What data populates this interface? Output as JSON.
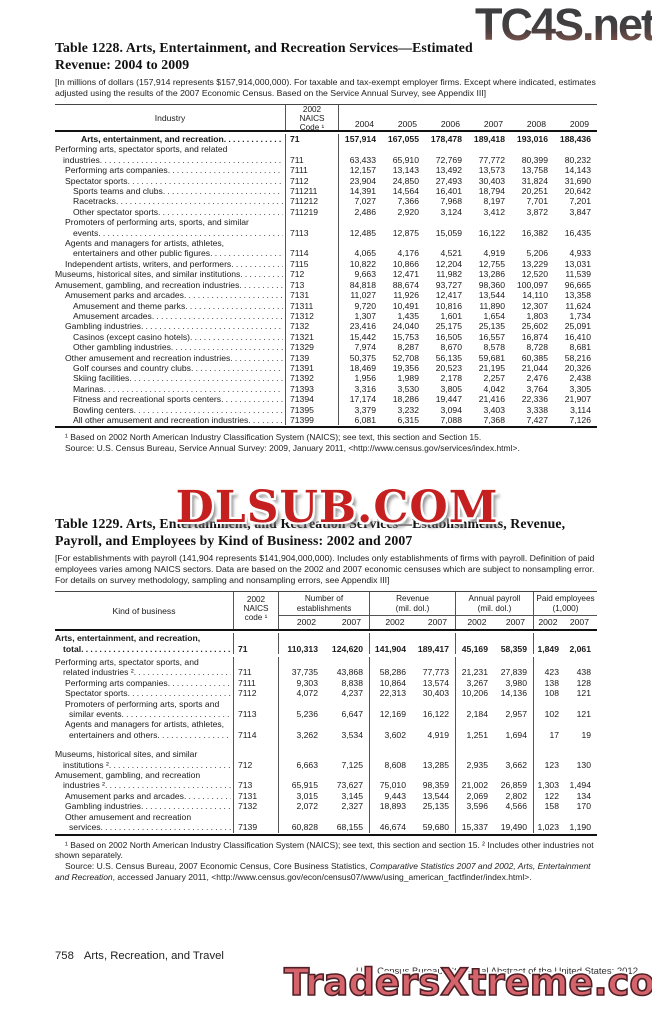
{
  "watermarks": {
    "top": "TC4S.net",
    "middle": "DLSUB.COM",
    "bottom": "TradersXtreme.com"
  },
  "table1228": {
    "title_line1": "Table 1228. Arts, Entertainment, and Recreation Services—Estimated",
    "title_line2": "Revenue: 2004 to 2009",
    "note": "[In millions of dollars (157,914 represents $157,914,000,000). For taxable and tax-exempt employer firms. Except where indicated, estimates adjusted using the results of the 2007 Economic Census. Based on the Service Annual Survey, see Appendix III]",
    "header": {
      "industry": "Industry",
      "naics": [
        "2002",
        "NAICS",
        "Code ¹"
      ],
      "years": [
        "2004",
        "2005",
        "2006",
        "2007",
        "2008",
        "2009"
      ]
    },
    "rows": [
      {
        "t": "Arts, entertainment, and recreation",
        "i": 26,
        "dots": true,
        "bold": true,
        "code": "71",
        "v": [
          "157,914",
          "167,055",
          "178,478",
          "189,418",
          "193,016",
          "188,436"
        ]
      },
      {
        "t": "Performing arts, spectator sports, and related",
        "i": 0
      },
      {
        "t": "industries",
        "i": 8,
        "dots": true,
        "code": "711",
        "v": [
          "63,433",
          "65,910",
          "72,769",
          "77,772",
          "80,399",
          "80,232"
        ]
      },
      {
        "t": "Performing arts companies",
        "i": 10,
        "dots": true,
        "code": "7111",
        "v": [
          "12,157",
          "13,143",
          "13,492",
          "13,573",
          "13,758",
          "14,143"
        ]
      },
      {
        "t": "Spectator sports",
        "i": 10,
        "dots": true,
        "code": "7112",
        "v": [
          "23,904",
          "24,850",
          "27,493",
          "30,403",
          "31,824",
          "31,690"
        ]
      },
      {
        "t": "Sports teams and clubs",
        "i": 18,
        "dots": true,
        "code": "711211",
        "v": [
          "14,391",
          "14,564",
          "16,401",
          "18,794",
          "20,251",
          "20,642"
        ]
      },
      {
        "t": "Racetracks",
        "i": 18,
        "dots": true,
        "code": "711212",
        "v": [
          "7,027",
          "7,366",
          "7,968",
          "8,197",
          "7,701",
          "7,201"
        ]
      },
      {
        "t": "Other spectator sports",
        "i": 18,
        "dots": true,
        "code": "711219",
        "v": [
          "2,486",
          "2,920",
          "3,124",
          "3,412",
          "3,872",
          "3,847"
        ]
      },
      {
        "t": "Promoters of performing arts, sports, and similar",
        "i": 10
      },
      {
        "t": "events",
        "i": 18,
        "dots": true,
        "code": "7113",
        "v": [
          "12,485",
          "12,875",
          "15,059",
          "16,122",
          "16,382",
          "16,435"
        ]
      },
      {
        "t": "Agents and managers for artists, athletes,",
        "i": 10
      },
      {
        "t": "entertainers and other public figures",
        "i": 18,
        "dots": true,
        "code": "7114",
        "v": [
          "4,065",
          "4,176",
          "4,521",
          "4,919",
          "5,206",
          "4,933"
        ]
      },
      {
        "t": "Independent artists, writers, and performers",
        "i": 10,
        "dots": true,
        "code": "7115",
        "v": [
          "10,822",
          "10,866",
          "12,204",
          "12,755",
          "13,229",
          "13,031"
        ]
      },
      {
        "t": "Museums, historical sites, and similar institutions",
        "i": 0,
        "dots": true,
        "code": "712",
        "v": [
          "9,663",
          "12,471",
          "11,982",
          "13,286",
          "12,520",
          "11,539"
        ]
      },
      {
        "t": "Amusement, gambling, and recreation industries",
        "i": 0,
        "dots": true,
        "code": "713",
        "v": [
          "84,818",
          "88,674",
          "93,727",
          "98,360",
          "100,097",
          "96,665"
        ]
      },
      {
        "t": "Amusement parks and arcades",
        "i": 10,
        "dots": true,
        "code": "7131",
        "v": [
          "11,027",
          "11,926",
          "12,417",
          "13,544",
          "14,110",
          "13,358"
        ]
      },
      {
        "t": "Amusement and theme parks",
        "i": 18,
        "dots": true,
        "code": "71311",
        "v": [
          "9,720",
          "10,491",
          "10,816",
          "11,890",
          "12,307",
          "11,624"
        ]
      },
      {
        "t": "Amusement arcades",
        "i": 18,
        "dots": true,
        "code": "71312",
        "v": [
          "1,307",
          "1,435",
          "1,601",
          "1,654",
          "1,803",
          "1,734"
        ]
      },
      {
        "t": "Gambling industries",
        "i": 10,
        "dots": true,
        "code": "7132",
        "v": [
          "23,416",
          "24,040",
          "25,175",
          "25,135",
          "25,602",
          "25,091"
        ]
      },
      {
        "t": "Casinos (except casino hotels)",
        "i": 18,
        "dots": true,
        "code": "71321",
        "v": [
          "15,442",
          "15,753",
          "16,505",
          "16,557",
          "16,874",
          "16,410"
        ]
      },
      {
        "t": "Other gambling industries",
        "i": 18,
        "dots": true,
        "code": "71329",
        "v": [
          "7,974",
          "8,287",
          "8,670",
          "8,578",
          "8,728",
          "8,681"
        ]
      },
      {
        "t": "Other amusement and recreation industries",
        "i": 10,
        "dots": true,
        "code": "7139",
        "v": [
          "50,375",
          "52,708",
          "56,135",
          "59,681",
          "60,385",
          "58,216"
        ]
      },
      {
        "t": "Golf courses and country clubs",
        "i": 18,
        "dots": true,
        "code": "71391",
        "v": [
          "18,469",
          "19,356",
          "20,523",
          "21,195",
          "21,044",
          "20,326"
        ]
      },
      {
        "t": "Skiing facilities",
        "i": 18,
        "dots": true,
        "code": "71392",
        "v": [
          "1,956",
          "1,989",
          "2,178",
          "2,257",
          "2,476",
          "2,438"
        ]
      },
      {
        "t": "Marinas",
        "i": 18,
        "dots": true,
        "code": "71393",
        "v": [
          "3,316",
          "3,530",
          "3,805",
          "4,042",
          "3,764",
          "3,305"
        ]
      },
      {
        "t": "Fitness and recreational sports centers",
        "i": 18,
        "dots": true,
        "code": "71394",
        "v": [
          "17,174",
          "18,286",
          "19,447",
          "21,416",
          "22,336",
          "21,907"
        ]
      },
      {
        "t": "Bowling centers",
        "i": 18,
        "dots": true,
        "code": "71395",
        "v": [
          "3,379",
          "3,232",
          "3,094",
          "3,403",
          "3,338",
          "3,114"
        ]
      },
      {
        "t": "All other amusement and recreation industries",
        "i": 18,
        "dots": true,
        "code": "71399",
        "v": [
          "6,081",
          "6,315",
          "7,088",
          "7,368",
          "7,427",
          "7,126"
        ]
      }
    ],
    "footnote": "¹ Based on 2002 North American Industry Classification System (NAICS); see text, this section and Section 15.",
    "source": "Source: U.S. Census Bureau, Service Annual Survey: 2009, January 2011, <http://www.census.gov/services/index.html>."
  },
  "table1229": {
    "title_line1": "Table 1229. Arts, Entertainment, and Recreation Services—Establishments, Revenue,",
    "title_line2": "Payroll, and Employees by Kind of Business: 2002 and 2007",
    "note": "[For establishments with payroll (141,904 represents $141,904,000,000). Includes only establishments of firms with payroll. Definition of paid employees varies among NAICS sectors. Data are based on the 2002 and 2007 economic censuses which are subject to nonsampling error. For details on survey methodology, sampling and nonsampling errors, see Appendix III]",
    "header": {
      "kind": "Kind of business",
      "naics": [
        "2002",
        "NAICS",
        "code ¹"
      ],
      "groups": [
        {
          "l1": "Number of",
          "l2": "establishments",
          "years": [
            "2002",
            "2007"
          ]
        },
        {
          "l1": "Revenue",
          "l2": "(mil. dol.)",
          "years": [
            "2002",
            "2007"
          ]
        },
        {
          "l1": "Annual payroll",
          "l2": "(mil. dol.)",
          "years": [
            "2002",
            "2007"
          ]
        },
        {
          "l1": "Paid employees",
          "l2": "(1,000)",
          "years": [
            "2002",
            "2007"
          ]
        }
      ]
    },
    "rows": [
      {
        "t": "Arts, entertainment, and recreation,",
        "i": 0,
        "bold": true
      },
      {
        "t": "total",
        "i": 8,
        "dots": true,
        "bold": true,
        "gap": true,
        "code": "71",
        "v": [
          "110,313",
          "124,620",
          "141,904",
          "189,417",
          "45,169",
          "58,359",
          "1,849",
          "2,061"
        ]
      },
      {
        "t": "Performing arts, spectator sports, and",
        "i": 0
      },
      {
        "t": "related industries ²",
        "i": 8,
        "dots": true,
        "code": "711",
        "v": [
          "37,735",
          "43,868",
          "58,286",
          "77,773",
          "21,231",
          "27,839",
          "423",
          "438"
        ]
      },
      {
        "t": "Performing arts companies",
        "i": 10,
        "dots": true,
        "code": "7111",
        "v": [
          "9,303",
          "8,838",
          "10,864",
          "13,574",
          "3,267",
          "3,980",
          "138",
          "128"
        ]
      },
      {
        "t": "Spectator sports",
        "i": 10,
        "dots": true,
        "code": "7112",
        "v": [
          "4,072",
          "4,237",
          "22,313",
          "30,403",
          "10,206",
          "14,136",
          "108",
          "121"
        ]
      },
      {
        "t": "Promoters of performing arts, sports and",
        "i": 10
      },
      {
        "t": "similar events",
        "i": 14,
        "dots": true,
        "code": "7113",
        "v": [
          "5,236",
          "6,647",
          "12,169",
          "16,122",
          "2,184",
          "2,957",
          "102",
          "121"
        ]
      },
      {
        "t": "Agents and managers for artists, athletes,",
        "i": 10
      },
      {
        "t": "entertainers and others",
        "i": 14,
        "dots": true,
        "code": "7114",
        "v": [
          "3,262",
          "3,534",
          "3,602",
          "4,919",
          "1,251",
          "1,694",
          "17",
          "19"
        ]
      },
      {
        "spacer": true
      },
      {
        "t": "Museums, historical sites, and similar",
        "i": 0
      },
      {
        "t": "institutions ²",
        "i": 8,
        "dots": true,
        "code": "712",
        "v": [
          "6,663",
          "7,125",
          "8,608",
          "13,285",
          "2,935",
          "3,662",
          "123",
          "130"
        ]
      },
      {
        "t": "Amusement, gambling, and recreation",
        "i": 0
      },
      {
        "t": "industries ²",
        "i": 8,
        "dots": true,
        "code": "713",
        "v": [
          "65,915",
          "73,627",
          "75,010",
          "98,359",
          "21,002",
          "26,859",
          "1,303",
          "1,494"
        ]
      },
      {
        "t": "Amusement parks and arcades",
        "i": 10,
        "dots": true,
        "code": "7131",
        "v": [
          "3,015",
          "3,145",
          "9,443",
          "13,544",
          "2,069",
          "2,802",
          "122",
          "134"
        ]
      },
      {
        "t": "Gambling industries",
        "i": 10,
        "dots": true,
        "code": "7132",
        "v": [
          "2,072",
          "2,327",
          "18,893",
          "25,135",
          "3,596",
          "4,566",
          "158",
          "170"
        ]
      },
      {
        "t": "Other amusement and recreation",
        "i": 10
      },
      {
        "t": "services",
        "i": 14,
        "dots": true,
        "code": "7139",
        "v": [
          "60,828",
          "68,155",
          "46,674",
          "59,680",
          "15,337",
          "19,490",
          "1,023",
          "1,190"
        ]
      }
    ],
    "footnote": "¹ Based on 2002 North American Industry Classification System (NAICS); see text, this section and section 15. ² Includes other industries not shown separately.",
    "source": [
      "Source: U.S. Census Bureau, 2007 Economic Census, Core Business Statistics, ",
      "Comparative Statistics 2007 and 2002, Arts, Entertainment and Recreation",
      ", accessed January 2011, <http://www.census.gov/econ/census07/www/using_american_factfinder/index.html>."
    ]
  },
  "footer": {
    "page_number": "758",
    "section": "Arts, Recreation, and Travel",
    "credit": "U.S. Census Bureau, Statistical Abstract of the United States: 2012"
  }
}
